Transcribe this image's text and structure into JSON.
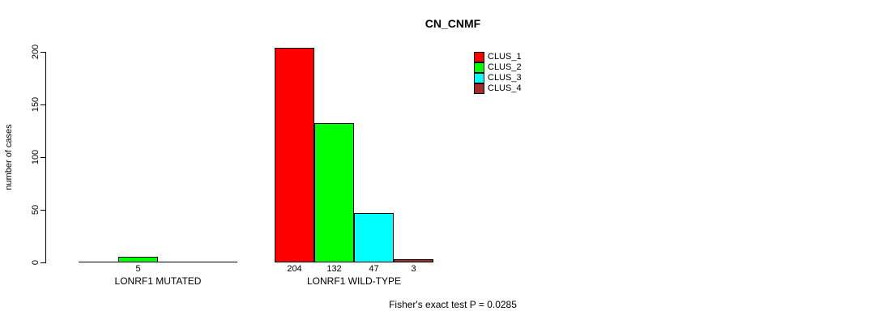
{
  "chart_data": {
    "type": "bar",
    "title": "CN_CNMF",
    "ylabel": "number of cases",
    "xlabel": "",
    "ylim": [
      0,
      200
    ],
    "yticks": [
      0,
      50,
      100,
      150,
      200
    ],
    "categories": [
      "LONRF1 MUTATED",
      "LONRF1 WILD-TYPE"
    ],
    "series": [
      {
        "name": "CLUS_1",
        "color": "#ff0000",
        "values": [
          0,
          204
        ]
      },
      {
        "name": "CLUS_2",
        "color": "#00ff00",
        "values": [
          5,
          132
        ]
      },
      {
        "name": "CLUS_3",
        "color": "#00ffff",
        "values": [
          0,
          47
        ]
      },
      {
        "name": "CLUS_4",
        "color": "#a52a2a",
        "values": [
          0,
          3
        ]
      }
    ],
    "bar_labels": [
      [
        "",
        "5",
        "",
        ""
      ],
      [
        "204",
        "132",
        "47",
        "3"
      ]
    ],
    "legend": {
      "position": "top-right",
      "entries": [
        "CLUS_1",
        "CLUS_2",
        "CLUS_3",
        "CLUS_4"
      ]
    },
    "grid": false,
    "annotation": "Fisher's exact test P = 0.0285"
  }
}
